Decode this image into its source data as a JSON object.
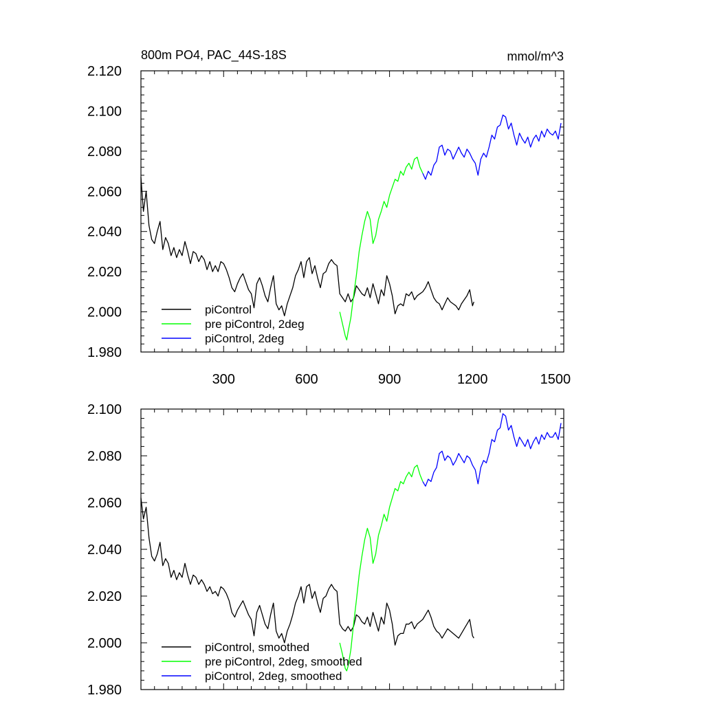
{
  "chart_data": [
    {
      "type": "line",
      "title": "800m PO4, PAC_44S-18S",
      "units": "mmol/m^3",
      "xlabel": "",
      "ylabel": "",
      "xlim": [
        1,
        1530
      ],
      "ylim": [
        1.98,
        2.12
      ],
      "x_ticks": [
        300,
        600,
        900,
        1200,
        1500
      ],
      "x_tick_labels": [
        "300",
        "600",
        "900",
        "1200",
        "1500"
      ],
      "y_ticks": [
        1.98,
        2.0,
        2.02,
        2.04,
        2.06,
        2.08,
        2.1,
        2.12
      ],
      "y_tick_labels": [
        "1.980",
        "2.000",
        "2.020",
        "2.040",
        "2.060",
        "2.080",
        "2.100",
        "2.120"
      ],
      "grid": false,
      "legend_position": "bottom-left",
      "series": [
        {
          "name": "piControl",
          "color": "#000000",
          "x": [
            1,
            10,
            20,
            30,
            40,
            50,
            60,
            70,
            80,
            90,
            100,
            110,
            120,
            130,
            140,
            150,
            160,
            170,
            180,
            190,
            200,
            210,
            220,
            230,
            240,
            250,
            260,
            270,
            280,
            290,
            300,
            310,
            320,
            330,
            340,
            350,
            360,
            370,
            380,
            390,
            400,
            410,
            420,
            430,
            440,
            450,
            460,
            470,
            480,
            490,
            500,
            510,
            520,
            530,
            540,
            550,
            560,
            570,
            580,
            590,
            600,
            610,
            620,
            630,
            640,
            650,
            660,
            670,
            680,
            690,
            700,
            710,
            720,
            730,
            740,
            750,
            760,
            770,
            780,
            790,
            800,
            810,
            820,
            830,
            840,
            850,
            860,
            870,
            880,
            890,
            900,
            910,
            920,
            930,
            940,
            950,
            960,
            970,
            980,
            990,
            1000,
            1010,
            1020,
            1030,
            1040,
            1050,
            1060,
            1070,
            1080,
            1090,
            1100,
            1110,
            1120,
            1130,
            1140,
            1150,
            1160,
            1170,
            1180,
            1190,
            1200,
            1205
          ],
          "y": [
            2.067,
            2.05,
            2.06,
            2.043,
            2.036,
            2.034,
            2.04,
            2.045,
            2.031,
            2.037,
            2.034,
            2.028,
            2.032,
            2.027,
            2.031,
            2.028,
            2.035,
            2.03,
            2.024,
            2.03,
            2.029,
            2.025,
            2.028,
            2.026,
            2.021,
            2.025,
            2.02,
            2.023,
            2.02,
            2.025,
            2.024,
            2.021,
            2.017,
            2.012,
            2.01,
            2.014,
            2.017,
            2.019,
            2.015,
            2.011,
            2.009,
            2.002,
            2.014,
            2.017,
            2.013,
            2.008,
            2.005,
            2.012,
            2.018,
            2.004,
            2.001,
            2.003,
            1.998,
            2.004,
            2.008,
            2.012,
            2.018,
            2.021,
            2.025,
            2.017,
            2.025,
            2.027,
            2.019,
            2.023,
            2.017,
            2.012,
            2.019,
            2.02,
            2.024,
            2.026,
            2.024,
            2.023,
            2.009,
            2.007,
            2.005,
            2.009,
            2.005,
            2.007,
            2.013,
            2.011,
            2.009,
            2.008,
            2.012,
            2.007,
            2.014,
            2.009,
            2.004,
            2.011,
            2.008,
            2.018,
            2.014,
            2.008,
            1.999,
            2.003,
            2.004,
            2.003,
            2.009,
            2.008,
            2.01,
            2.006,
            2.008,
            2.009,
            2.01,
            2.012,
            2.015,
            2.011,
            2.007,
            2.005,
            2.004,
            2.001,
            2.004,
            2.007,
            2.005,
            2.004,
            2.003,
            2.001,
            2.004,
            2.006,
            2.008,
            2.011,
            2.003,
            2.005
          ]
        },
        {
          "name": "pre piControl, 2deg",
          "color": "#00ff00",
          "x": [
            720,
            730,
            740,
            745,
            750,
            760,
            770,
            780,
            790,
            800,
            810,
            820,
            830,
            840,
            850,
            860,
            870,
            880,
            890,
            900,
            910,
            920,
            930,
            940,
            950,
            960,
            970,
            980,
            990,
            1000,
            1010,
            1020
          ],
          "y": [
            2.0,
            1.994,
            1.988,
            1.986,
            1.99,
            1.997,
            2.008,
            2.018,
            2.03,
            2.038,
            2.045,
            2.05,
            2.046,
            2.034,
            2.038,
            2.046,
            2.05,
            2.055,
            2.052,
            2.058,
            2.062,
            2.066,
            2.065,
            2.07,
            2.068,
            2.072,
            2.074,
            2.071,
            2.076,
            2.077,
            2.072,
            2.069
          ]
        },
        {
          "name": "piControl, 2deg",
          "color": "#0000ff",
          "x": [
            1020,
            1030,
            1040,
            1050,
            1060,
            1070,
            1080,
            1090,
            1100,
            1110,
            1120,
            1130,
            1140,
            1150,
            1160,
            1170,
            1180,
            1190,
            1200,
            1210,
            1220,
            1230,
            1240,
            1250,
            1260,
            1270,
            1280,
            1290,
            1300,
            1310,
            1320,
            1330,
            1340,
            1350,
            1360,
            1370,
            1380,
            1390,
            1400,
            1410,
            1420,
            1430,
            1440,
            1450,
            1460,
            1470,
            1480,
            1490,
            1500,
            1510,
            1520
          ],
          "y": [
            2.069,
            2.066,
            2.07,
            2.068,
            2.073,
            2.075,
            2.082,
            2.083,
            2.078,
            2.081,
            2.08,
            2.076,
            2.079,
            2.082,
            2.079,
            2.077,
            2.081,
            2.079,
            2.076,
            2.074,
            2.068,
            2.076,
            2.079,
            2.077,
            2.082,
            2.088,
            2.086,
            2.092,
            2.093,
            2.098,
            2.097,
            2.091,
            2.094,
            2.088,
            2.083,
            2.089,
            2.086,
            2.084,
            2.087,
            2.082,
            2.086,
            2.088,
            2.085,
            2.09,
            2.087,
            2.091,
            2.089,
            2.088,
            2.09,
            2.086,
            2.094
          ]
        }
      ]
    },
    {
      "type": "line",
      "title": "",
      "xlabel": "",
      "ylabel": "",
      "xlim": [
        1,
        1530
      ],
      "ylim": [
        1.98,
        2.1
      ],
      "x_ticks": [
        300,
        600,
        900,
        1200,
        1500
      ],
      "y_ticks": [
        1.98,
        2.0,
        2.02,
        2.04,
        2.06,
        2.08,
        2.1
      ],
      "y_tick_labels": [
        "1.980",
        "2.000",
        "2.020",
        "2.040",
        "2.060",
        "2.080",
        "2.100"
      ],
      "grid": false,
      "legend_position": "bottom-left",
      "series": [
        {
          "name": "piControl, smoothed",
          "color": "#000000",
          "x": [
            1,
            10,
            20,
            30,
            40,
            50,
            60,
            70,
            80,
            90,
            100,
            110,
            120,
            130,
            140,
            150,
            160,
            170,
            180,
            190,
            200,
            210,
            220,
            230,
            240,
            250,
            260,
            270,
            280,
            290,
            300,
            310,
            320,
            330,
            340,
            350,
            360,
            370,
            380,
            390,
            400,
            410,
            420,
            430,
            440,
            450,
            460,
            470,
            480,
            490,
            500,
            510,
            520,
            530,
            540,
            550,
            560,
            570,
            580,
            590,
            600,
            610,
            620,
            630,
            640,
            650,
            660,
            670,
            680,
            690,
            700,
            710,
            720,
            730,
            740,
            750,
            760,
            770,
            780,
            790,
            800,
            810,
            820,
            830,
            840,
            850,
            860,
            870,
            880,
            890,
            900,
            910,
            920,
            930,
            940,
            950,
            960,
            970,
            980,
            990,
            1000,
            1010,
            1020,
            1030,
            1040,
            1050,
            1060,
            1070,
            1080,
            1090,
            1100,
            1110,
            1120,
            1130,
            1140,
            1150,
            1160,
            1170,
            1180,
            1190,
            1200,
            1205
          ],
          "y": [
            2.062,
            2.053,
            2.058,
            2.045,
            2.037,
            2.035,
            2.038,
            2.043,
            2.033,
            2.036,
            2.034,
            2.028,
            2.031,
            2.027,
            2.03,
            2.028,
            2.034,
            2.029,
            2.025,
            2.029,
            2.028,
            2.025,
            2.027,
            2.025,
            2.022,
            2.024,
            2.021,
            2.022,
            2.02,
            2.024,
            2.023,
            2.021,
            2.018,
            2.013,
            2.011,
            2.014,
            2.016,
            2.018,
            2.015,
            2.012,
            2.01,
            2.003,
            2.013,
            2.016,
            2.012,
            2.008,
            2.006,
            2.012,
            2.017,
            2.005,
            2.002,
            2.004,
            2.0,
            2.005,
            2.008,
            2.012,
            2.017,
            2.02,
            2.024,
            2.017,
            2.024,
            2.025,
            2.019,
            2.022,
            2.017,
            2.013,
            2.019,
            2.02,
            2.023,
            2.025,
            2.023,
            2.022,
            2.008,
            2.006,
            2.005,
            2.007,
            2.005,
            2.007,
            2.012,
            2.011,
            2.009,
            2.008,
            2.011,
            2.007,
            2.013,
            2.009,
            2.005,
            2.011,
            2.008,
            2.017,
            2.014,
            2.008,
            1.999,
            2.003,
            2.004,
            2.004,
            2.008,
            2.008,
            2.009,
            2.006,
            2.008,
            2.009,
            2.01,
            2.012,
            2.014,
            2.011,
            2.007,
            2.005,
            2.004,
            2.002,
            2.004,
            2.006,
            2.005,
            2.004,
            2.003,
            2.002,
            2.004,
            2.006,
            2.008,
            2.01,
            2.003,
            2.002
          ]
        },
        {
          "name": "pre piControl, 2deg, smoothed",
          "color": "#00ff00",
          "x": [
            720,
            730,
            740,
            745,
            750,
            760,
            770,
            780,
            790,
            800,
            810,
            820,
            830,
            840,
            850,
            860,
            870,
            880,
            890,
            900,
            910,
            920,
            930,
            940,
            950,
            960,
            970,
            980,
            990,
            1000,
            1010,
            1020
          ],
          "y": [
            2.0,
            1.995,
            1.989,
            1.988,
            1.99,
            1.997,
            2.008,
            2.018,
            2.029,
            2.037,
            2.044,
            2.049,
            2.045,
            2.034,
            2.038,
            2.046,
            2.05,
            2.055,
            2.052,
            2.058,
            2.062,
            2.066,
            2.065,
            2.069,
            2.068,
            2.071,
            2.073,
            2.071,
            2.075,
            2.076,
            2.072,
            2.069
          ]
        },
        {
          "name": "piControl, 2deg, smoothed",
          "color": "#0000ff",
          "x": [
            1020,
            1030,
            1040,
            1050,
            1060,
            1070,
            1080,
            1090,
            1100,
            1110,
            1120,
            1130,
            1140,
            1150,
            1160,
            1170,
            1180,
            1190,
            1200,
            1210,
            1220,
            1230,
            1240,
            1250,
            1260,
            1270,
            1280,
            1290,
            1300,
            1310,
            1320,
            1330,
            1340,
            1350,
            1360,
            1370,
            1380,
            1390,
            1400,
            1410,
            1420,
            1430,
            1440,
            1450,
            1460,
            1470,
            1480,
            1490,
            1500,
            1510,
            1520
          ],
          "y": [
            2.069,
            2.067,
            2.07,
            2.069,
            2.073,
            2.075,
            2.081,
            2.082,
            2.078,
            2.08,
            2.079,
            2.076,
            2.078,
            2.081,
            2.079,
            2.077,
            2.08,
            2.079,
            2.076,
            2.074,
            2.068,
            2.075,
            2.078,
            2.077,
            2.081,
            2.087,
            2.086,
            2.091,
            2.092,
            2.098,
            2.097,
            2.091,
            2.093,
            2.088,
            2.084,
            2.088,
            2.086,
            2.084,
            2.087,
            2.083,
            2.086,
            2.088,
            2.085,
            2.089,
            2.087,
            2.09,
            2.088,
            2.088,
            2.09,
            2.087,
            2.094
          ]
        }
      ]
    }
  ]
}
